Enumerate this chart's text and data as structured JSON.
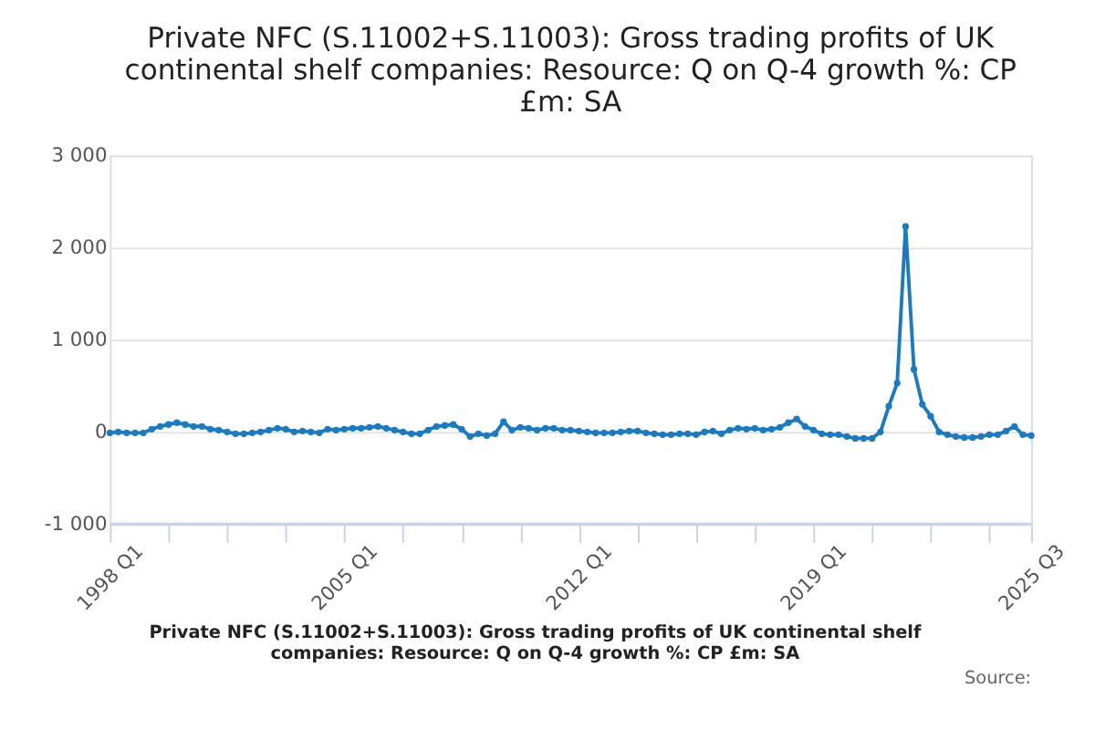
{
  "chart_data": {
    "type": "line",
    "title": "Private NFC (S.11002+S.11003): Gross trading profits of UK continental shelf companies: Resource: Q on Q-4 growth %: CP £m: SA",
    "categories": [
      "1998 Q1",
      null,
      null,
      null,
      null,
      null,
      null,
      null,
      null,
      null,
      null,
      null,
      null,
      null,
      null,
      null,
      null,
      null,
      null,
      null,
      null,
      null,
      null,
      null,
      null,
      null,
      null,
      null,
      "2005 Q1",
      null,
      null,
      null,
      null,
      null,
      null,
      null,
      null,
      null,
      null,
      null,
      null,
      null,
      null,
      null,
      null,
      null,
      null,
      null,
      null,
      null,
      null,
      null,
      null,
      null,
      null,
      null,
      "2012 Q1",
      null,
      null,
      null,
      null,
      null,
      null,
      null,
      null,
      null,
      null,
      null,
      null,
      null,
      null,
      null,
      null,
      null,
      null,
      null,
      null,
      null,
      null,
      null,
      null,
      null,
      null,
      null,
      "2019 Q1",
      null,
      null,
      null,
      null,
      null,
      null,
      null,
      null,
      null,
      null,
      null,
      null,
      null,
      null,
      null,
      null,
      null,
      null,
      null,
      null,
      null,
      null,
      null,
      null,
      null,
      "2025 Q3"
    ],
    "series": [
      {
        "color": "#1a7bc4",
        "values": [
          -10,
          0,
          -10,
          -10,
          -10,
          30,
          60,
          80,
          100,
          80,
          60,
          60,
          30,
          20,
          0,
          -20,
          -20,
          -10,
          0,
          20,
          40,
          30,
          0,
          10,
          0,
          -10,
          30,
          20,
          30,
          40,
          40,
          50,
          60,
          40,
          20,
          0,
          -20,
          -20,
          20,
          60,
          70,
          80,
          30,
          -50,
          -20,
          -40,
          -20,
          110,
          20,
          50,
          40,
          20,
          40,
          40,
          20,
          20,
          10,
          0,
          -10,
          -10,
          -10,
          0,
          10,
          10,
          -10,
          -20,
          -30,
          -30,
          -20,
          -20,
          -30,
          0,
          10,
          -20,
          20,
          40,
          30,
          40,
          20,
          30,
          50,
          100,
          140,
          60,
          20,
          -20,
          -30,
          -30,
          -50,
          -70,
          -70,
          -70,
          0,
          280,
          530,
          2230,
          680,
          300,
          170,
          0,
          -30,
          -50,
          -60,
          -60,
          -50,
          -30,
          -30,
          10,
          60,
          -30,
          -40
        ]
      }
    ],
    "ylim": [
      -1000,
      3000
    ],
    "yticks": [
      {
        "value": -1000,
        "label": "-1 000"
      },
      0,
      {
        "value": 1000,
        "label": "1 000"
      },
      {
        "value": 2000,
        "label": "2 000"
      },
      {
        "value": 3000,
        "label": "3 000"
      }
    ],
    "grid": "y",
    "marker": "circle",
    "line_style": "solid",
    "annotations": [
      "Private NFC (S.11002+S.11003): Gross trading profits of UK continental shelf companies: Resource: Q on Q-4 growth %: CP £m: SA",
      "Source:"
    ]
  }
}
